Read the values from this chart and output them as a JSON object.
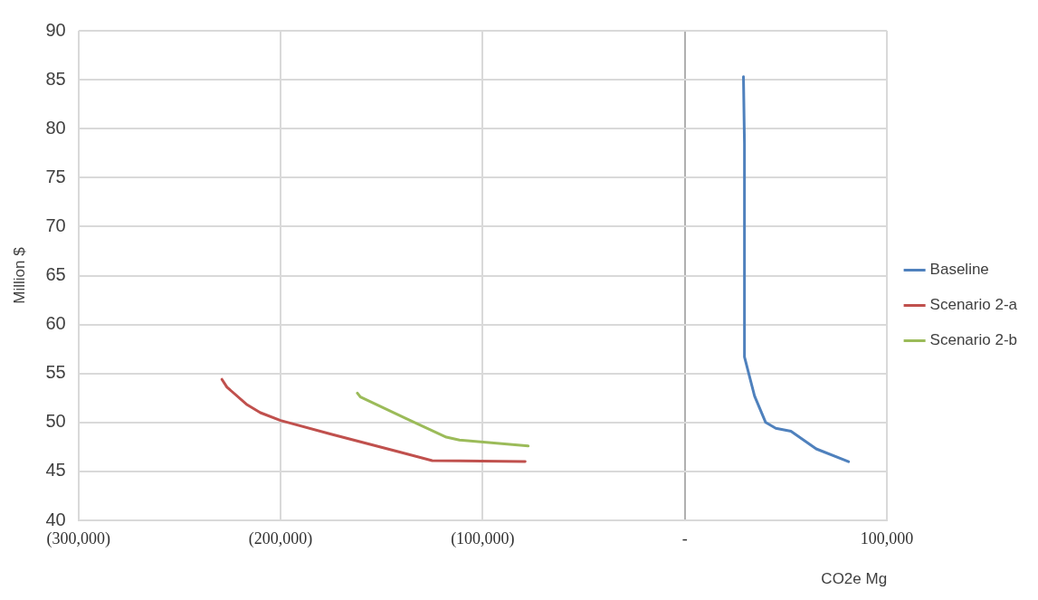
{
  "chart_data": {
    "type": "line",
    "xlabel": "CO2e Mg",
    "ylabel": "Million $",
    "xlim": [
      -300000,
      100000
    ],
    "xticks": [
      {
        "value": -300000,
        "label": "(300,000)"
      },
      {
        "value": -200000,
        "label": "(200,000)"
      },
      {
        "value": -100000,
        "label": "(100,000)"
      },
      {
        "value": 0,
        "label": "-"
      },
      {
        "value": 100000,
        "label": "100,000"
      }
    ],
    "ylim": [
      40,
      90
    ],
    "yticks": [
      40,
      45,
      50,
      55,
      60,
      65,
      70,
      75,
      80,
      85,
      90
    ],
    "grid": true,
    "legend": "right",
    "marker": "none",
    "line_style": "solid",
    "series": [
      {
        "name": "Baseline",
        "color": "#4f81bd",
        "x": [
          29000,
          29500,
          29500,
          34500,
          40000,
          45000,
          52500,
          65000,
          81000
        ],
        "values": [
          85.3,
          78.5,
          56.7,
          52.7,
          50.0,
          49.4,
          49.1,
          47.3,
          46.0
        ]
      },
      {
        "name": "Scenario 2-a",
        "color": "#c0504d",
        "x": [
          -229000,
          -226500,
          -216500,
          -210000,
          -200000,
          -175000,
          -141500,
          -125000,
          -79000
        ],
        "values": [
          54.4,
          53.6,
          51.8,
          51.0,
          50.2,
          48.8,
          47.0,
          46.1,
          46.0
        ]
      },
      {
        "name": "Scenario 2-b",
        "color": "#9bbb59",
        "x": [
          -162000,
          -160500,
          -138000,
          -118000,
          -111500,
          -77500
        ],
        "values": [
          53.0,
          52.6,
          50.4,
          48.5,
          48.2,
          47.6
        ]
      }
    ]
  }
}
